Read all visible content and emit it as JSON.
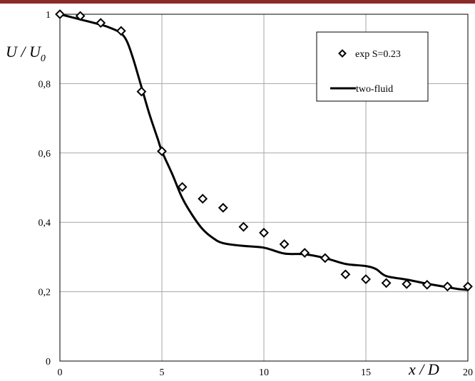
{
  "colors": {
    "top_bar": "#8b2a2a",
    "grid": "#a6a6a6",
    "line": "#000000",
    "marker": "#000000"
  },
  "chart_data": {
    "type": "line",
    "xlabel": "x / D",
    "ylabel": "U / U0",
    "ylabel_parts": {
      "main": "U / U",
      "sub": "0"
    },
    "xlim": [
      0,
      20
    ],
    "ylim": [
      0,
      1
    ],
    "x_ticks": [
      0,
      5,
      10,
      15,
      20
    ],
    "x_tick_labels": [
      "0",
      "5",
      "10",
      "15",
      "20"
    ],
    "y_ticks": [
      0,
      0.2,
      0.4,
      0.6,
      0.8,
      1
    ],
    "y_tick_labels": [
      "0",
      "0,2",
      "0,4",
      "0,6",
      "0,8",
      "1"
    ],
    "grid": true,
    "legend_position": "top-right",
    "series": [
      {
        "name": "exp S=0.23",
        "style": "diamond-markers",
        "x": [
          0,
          1,
          2,
          3,
          4,
          5,
          6,
          7,
          8,
          9,
          10,
          11,
          12,
          13,
          14,
          15,
          16,
          17,
          18,
          19,
          20
        ],
        "y": [
          1.0,
          0.995,
          0.975,
          0.952,
          0.777,
          0.605,
          0.502,
          0.468,
          0.442,
          0.387,
          0.37,
          0.337,
          0.312,
          0.297,
          0.25,
          0.236,
          0.225,
          0.222,
          0.22,
          0.215,
          0.215
        ]
      },
      {
        "name": "two-fluid",
        "style": "solid-line",
        "x": [
          0,
          1,
          2,
          2.5,
          3,
          3.3,
          3.6,
          4,
          4.4,
          4.8,
          5,
          5.5,
          6,
          6.5,
          7,
          7.5,
          8,
          9,
          10,
          11,
          12,
          13,
          14,
          15,
          15.5,
          16,
          17,
          18,
          19,
          19.5,
          20
        ],
        "y": [
          1.0,
          0.985,
          0.97,
          0.96,
          0.945,
          0.92,
          0.87,
          0.79,
          0.71,
          0.64,
          0.605,
          0.54,
          0.47,
          0.42,
          0.38,
          0.355,
          0.34,
          0.332,
          0.327,
          0.31,
          0.308,
          0.297,
          0.28,
          0.274,
          0.265,
          0.245,
          0.235,
          0.223,
          0.213,
          0.208,
          0.205
        ]
      }
    ]
  }
}
